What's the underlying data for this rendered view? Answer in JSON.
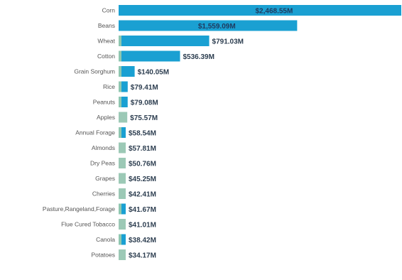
{
  "chart_data": {
    "type": "bar",
    "orientation": "horizontal",
    "title": "",
    "xlabel": "",
    "ylabel": "",
    "grid": false,
    "legend": "none",
    "xlim": [
      0,
      2468.55
    ],
    "categories": [
      "Corn",
      "Beans",
      "Wheat",
      "Cotton",
      "Grain Sorghum",
      "Rice",
      "Peanuts",
      "Apples",
      "Annual Forage",
      "Almonds",
      "Dry Peas",
      "Grapes",
      "Cherries",
      "Pasture,Rangeland,Forage",
      "Flue Cured Tobacco",
      "Canola",
      "Potatoes"
    ],
    "values": [
      2468.55,
      1559.09,
      791.03,
      536.39,
      140.05,
      79.41,
      79.08,
      75.57,
      58.54,
      57.81,
      50.76,
      45.25,
      42.41,
      41.67,
      41.01,
      38.42,
      34.17
    ],
    "value_labels": [
      "$2,468.55M",
      "$1,559.09M",
      "$791.03M",
      "$536.39M",
      "$140.05M",
      "$79.41M",
      "$79.08M",
      "$75.57M",
      "$58.54M",
      "$57.81M",
      "$50.76M",
      "$45.25M",
      "$42.41M",
      "$41.67M",
      "$41.01M",
      "$38.42M",
      "$34.17M"
    ],
    "bar_colors": [
      "#1aa0d2",
      "#1aa0d2",
      "#1aa0d2",
      "#1aa0d2",
      "#1aa0d2",
      "#1aa0d2",
      "#1aa0d2",
      "#9cc9b6",
      "#1aa0d2",
      "#9cc9b6",
      "#9cc9b6",
      "#9cc9b6",
      "#9cc9b6",
      "#1aa0d2",
      "#9cc9b6",
      "#1aa0d2",
      "#9cc9b6"
    ],
    "accent_color": "#8fc7b0"
  }
}
